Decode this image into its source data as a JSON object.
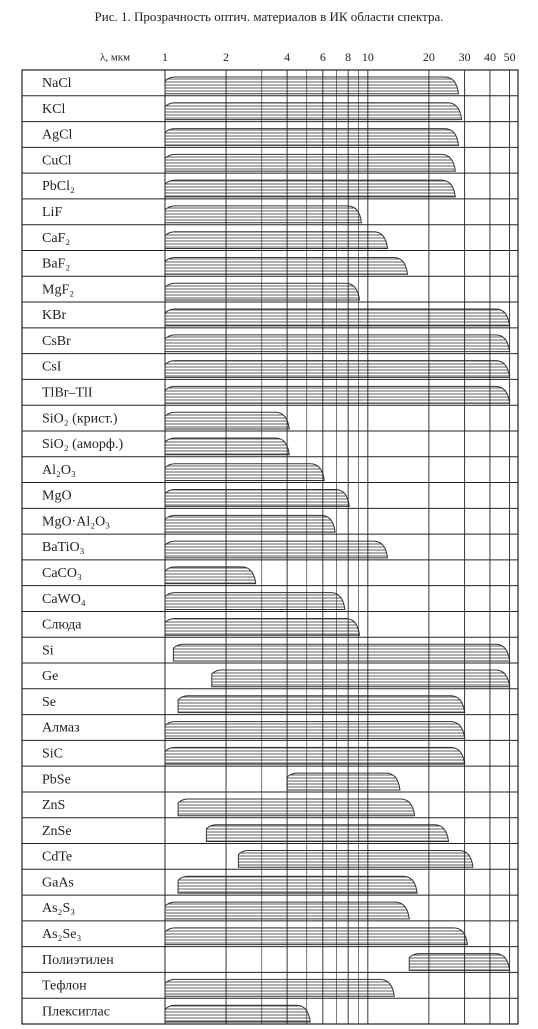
{
  "chart_data": {
    "type": "range",
    "title": "Рис. 1. Прозрачность оптич. материалов в ИК области спектра.",
    "x_label": "λ, мкм",
    "categories": [
      "NaCl",
      "KCl",
      "AgCl",
      "CuCl",
      "PbCl₂",
      "LiF",
      "CaF₂",
      "BaF₂",
      "MgF₂",
      "KBr",
      "CsBr",
      "CsI",
      "TlBr–TlI",
      "SiO₂ (крист.)",
      "SiO₂ (аморф.)",
      "Al₂O₃",
      "MgO",
      "MgO·Al₂O₃",
      "BaTiO₃",
      "CaCO₃",
      "CaWO₄",
      "Слюда",
      "Si",
      "Ge",
      "Se",
      "Алмаз",
      "SiC",
      "PbSe",
      "ZnS",
      "ZnSe",
      "CdTe",
      "GaAs",
      "As₂S₃",
      "As₂Se₃",
      "Полиэтилен",
      "Тефлон",
      "Плексиглас"
    ],
    "start": [
      1,
      1,
      1,
      1,
      1,
      1,
      1,
      1,
      1,
      1,
      1,
      1,
      1,
      1,
      1,
      1,
      1,
      1,
      1,
      1,
      1,
      1,
      1.1,
      1.7,
      1.16,
      1,
      1,
      4,
      1.16,
      1.6,
      2.3,
      1.16,
      1,
      1,
      16,
      1,
      1
    ],
    "end": [
      28,
      29,
      28,
      27,
      27,
      9.3,
      12.5,
      15.7,
      9.1,
      50,
      50,
      50,
      50,
      4.1,
      4.1,
      6.1,
      8.1,
      6.9,
      12.5,
      2.8,
      7.7,
      9.1,
      50,
      50,
      30,
      30,
      30,
      14.4,
      17,
      25,
      33,
      17.5,
      16,
      31,
      50,
      13.5,
      5.2
    ],
    "color": "#333333",
    "log_x": true,
    "xlim": [
      1,
      55
    ],
    "xticks": [
      1,
      2,
      4,
      6,
      8,
      10,
      20,
      30,
      40,
      50
    ],
    "xminor": [
      3,
      5,
      7,
      9
    ],
    "grid": true
  }
}
